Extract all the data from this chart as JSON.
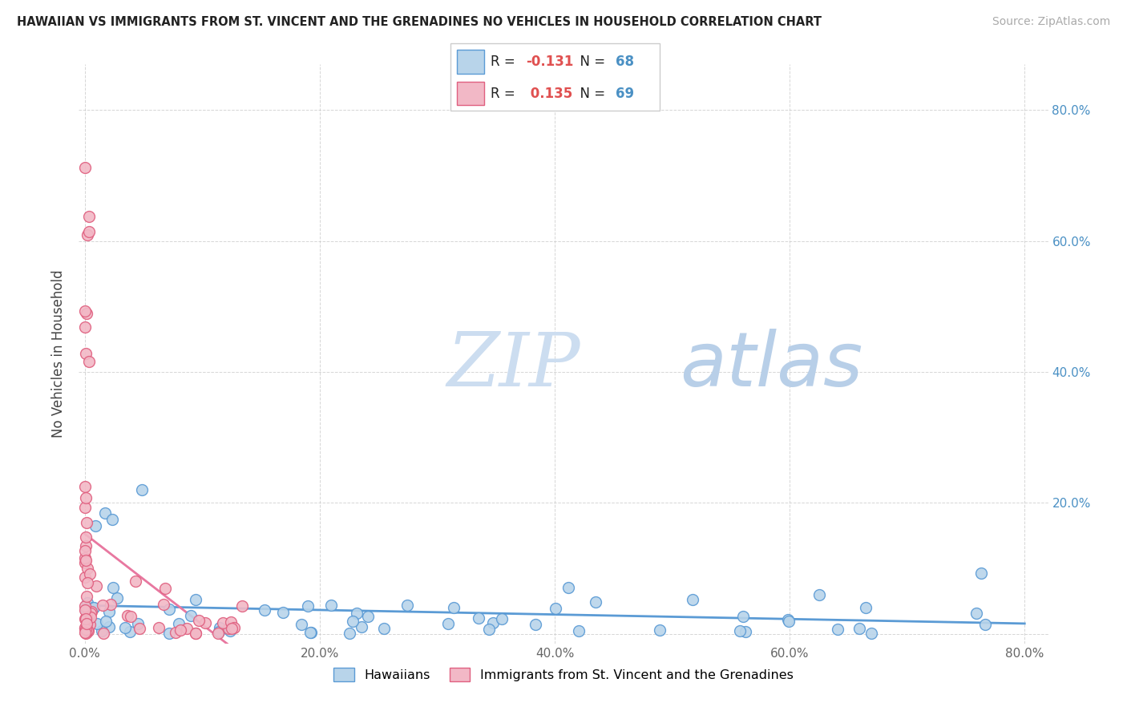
{
  "title": "HAWAIIAN VS IMMIGRANTS FROM ST. VINCENT AND THE GRENADINES NO VEHICLES IN HOUSEHOLD CORRELATION CHART",
  "source": "Source: ZipAtlas.com",
  "ylabel": "No Vehicles in Household",
  "blue_R": -0.131,
  "blue_N": 68,
  "pink_R": 0.135,
  "pink_N": 69,
  "blue_color": "#b8d4ea",
  "pink_color": "#f2b8c6",
  "blue_edge_color": "#5b9bd5",
  "pink_edge_color": "#e06080",
  "blue_line_color": "#5b9bd5",
  "pink_line_color": "#e878a0",
  "pink_dash_color": "#f0b0c8",
  "legend_label_blue": "Hawaiians",
  "legend_label_pink": "Immigrants from St. Vincent and the Grenadines",
  "watermark_color": "#ccddf0",
  "r_color": "#e05050",
  "n_color": "#4a90c4",
  "xlim": [
    -0.005,
    0.82
  ],
  "ylim": [
    -0.015,
    0.87
  ]
}
